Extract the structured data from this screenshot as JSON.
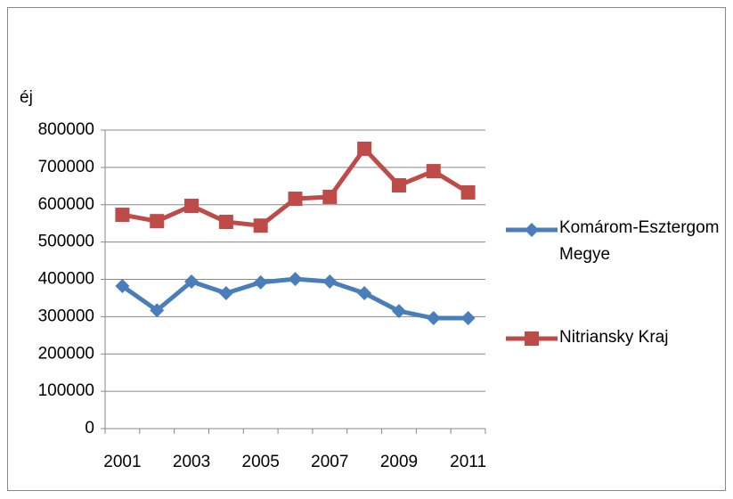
{
  "chart_data": {
    "type": "line",
    "ylabel": "éj",
    "categories": [
      "2001",
      null,
      "2003",
      null,
      "2005",
      null,
      "2007",
      null,
      "2009",
      null,
      "2011"
    ],
    "series": [
      {
        "name": "Komárom-Esztergom Megye",
        "color": "#4a7ebb",
        "values": [
          382000,
          317000,
          394000,
          363000,
          392000,
          401000,
          394000,
          363000,
          315000,
          296000,
          296000
        ]
      },
      {
        "name": "Nitriansky Kraj",
        "color": "#be4b48",
        "values": [
          573000,
          556000,
          597000,
          554000,
          544000,
          616000,
          621000,
          750000,
          652000,
          690000,
          633000
        ]
      }
    ],
    "ylim": [
      0,
      800000
    ],
    "yticks": [
      0,
      100000,
      200000,
      300000,
      400000,
      500000,
      600000,
      700000,
      800000
    ],
    "grid": true
  }
}
